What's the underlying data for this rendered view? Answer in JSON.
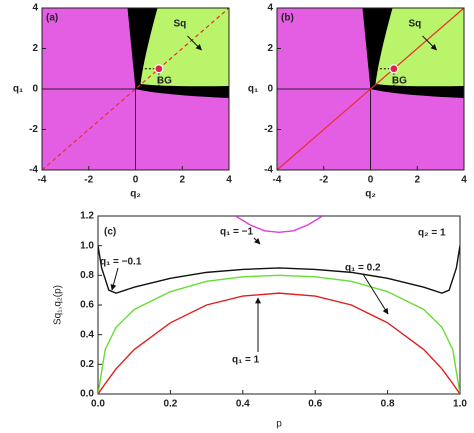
{
  "chart_data": [
    {
      "type": "region",
      "label": "(a)",
      "region_label": "Sq",
      "x_label": "q₂",
      "y_label": "q₁",
      "xlim": [
        -4,
        4
      ],
      "ylim": [
        -4,
        4
      ],
      "xticks": [
        -4,
        -2,
        0,
        2,
        4
      ],
      "yticks": [
        -4,
        -2,
        0,
        2,
        4
      ],
      "diagonal_style": "dashed",
      "point": {
        "x": 1,
        "y": 1,
        "label": "BG"
      }
    },
    {
      "type": "region",
      "label": "(b)",
      "region_label": "Sq",
      "x_label": "q₂",
      "y_label": "q₁",
      "xlim": [
        -4,
        4
      ],
      "ylim": [
        -4,
        4
      ],
      "xticks": [
        -4,
        -2,
        0,
        2,
        4
      ],
      "yticks": [
        -4,
        -2,
        0,
        2,
        4
      ],
      "diagonal_style": "solid",
      "point": {
        "x": 1,
        "y": 1,
        "label": "BG"
      }
    },
    {
      "type": "line",
      "label": "(c)",
      "x_label": "p",
      "y_label": "Sq₁,q₂(p)",
      "annotation": "q₂ = 1",
      "xlim": [
        0,
        1
      ],
      "ylim": [
        0,
        1.2
      ],
      "xticks": [
        {
          "value": 0,
          "label": "0.0"
        },
        0.2,
        0.4,
        0.6,
        0.8,
        {
          "value": 1,
          "label": "1.0"
        }
      ],
      "yticks": [
        {
          "value": 0,
          "label": "0.0"
        },
        0.2,
        0.4,
        0.6,
        0.8,
        {
          "value": 1,
          "label": "1.0"
        },
        1.2
      ],
      "series": [
        {
          "name": "q₁ = −1",
          "color": "#e03ce0",
          "x": [
            0.38,
            0.42,
            0.46,
            0.5,
            0.54,
            0.58,
            0.62
          ],
          "values": [
            1.2,
            1.14,
            1.1,
            1.09,
            1.1,
            1.14,
            1.2
          ]
        },
        {
          "name": "q₁ = −0.1",
          "color": "#111111",
          "x": [
            0,
            0.01,
            0.03,
            0.05,
            0.1,
            0.2,
            0.3,
            0.4,
            0.5,
            0.6,
            0.7,
            0.8,
            0.9,
            0.95,
            0.97,
            0.99,
            1
          ],
          "values": [
            1.0,
            0.85,
            0.7,
            0.68,
            0.72,
            0.78,
            0.82,
            0.84,
            0.85,
            0.84,
            0.82,
            0.78,
            0.72,
            0.68,
            0.7,
            0.85,
            1.0
          ]
        },
        {
          "name": "q₁ = 0.2",
          "color": "#66dd33",
          "x": [
            0,
            0.02,
            0.05,
            0.1,
            0.2,
            0.3,
            0.4,
            0.5,
            0.6,
            0.7,
            0.8,
            0.9,
            0.95,
            0.98,
            1
          ],
          "values": [
            0,
            0.3,
            0.45,
            0.57,
            0.69,
            0.76,
            0.79,
            0.8,
            0.79,
            0.76,
            0.69,
            0.57,
            0.45,
            0.3,
            0
          ]
        },
        {
          "name": "q₁ = 1",
          "color": "#e02020",
          "x": [
            0,
            0.02,
            0.05,
            0.1,
            0.2,
            0.3,
            0.4,
            0.5,
            0.6,
            0.7,
            0.8,
            0.9,
            0.95,
            0.98,
            1
          ],
          "values": [
            0,
            0.07,
            0.17,
            0.3,
            0.48,
            0.6,
            0.66,
            0.68,
            0.66,
            0.6,
            0.48,
            0.3,
            0.17,
            0.07,
            0
          ]
        }
      ]
    }
  ]
}
